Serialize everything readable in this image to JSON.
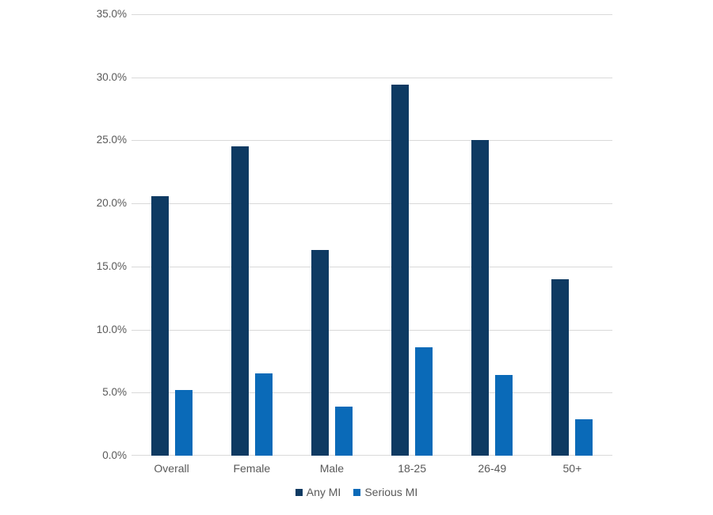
{
  "chart_data": {
    "type": "bar",
    "categories": [
      "Overall",
      "Female",
      "Male",
      "18-25",
      "26-49",
      "50+"
    ],
    "series": [
      {
        "name": "Any MI",
        "color": "#0e3a62",
        "values": [
          20.6,
          24.5,
          16.3,
          29.4,
          25.0,
          14.0
        ]
      },
      {
        "name": "Serious MI",
        "color": "#0a6ab8",
        "values": [
          5.2,
          6.5,
          3.9,
          8.6,
          6.4,
          2.9
        ]
      }
    ],
    "y_axis": {
      "min": 0,
      "max": 35,
      "step": 5,
      "tick_labels": [
        "0.0%",
        "5.0%",
        "10.0%",
        "15.0%",
        "20.0%",
        "25.0%",
        "30.0%",
        "35.0%"
      ]
    },
    "x_axis_label": "",
    "title": "",
    "grid": true,
    "legend_position": "bottom",
    "colors": {
      "gridline": "#d9d9d9",
      "axis_text": "#595959",
      "background": "#ffffff"
    }
  }
}
